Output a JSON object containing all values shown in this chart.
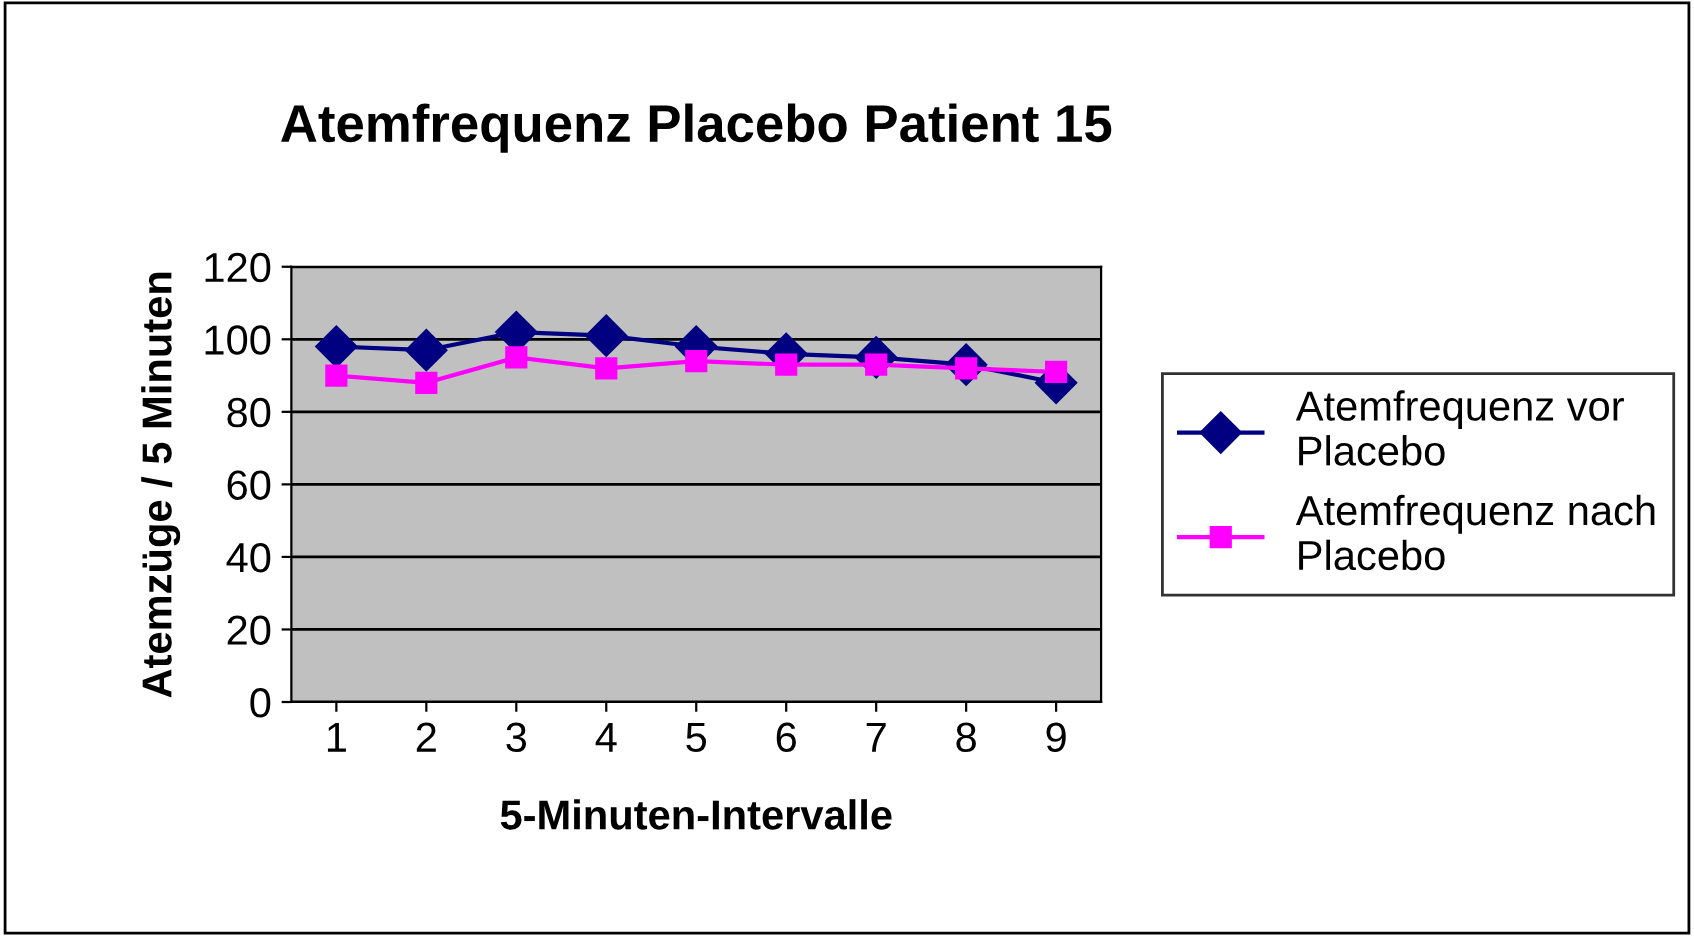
{
  "chart_data": {
    "type": "line",
    "title": "Atemfrequenz Placebo Patient 15",
    "xlabel": "5-Minuten-Intervalle",
    "ylabel": "Atemzüge / 5 Minuten",
    "categories": [
      "1",
      "2",
      "3",
      "4",
      "5",
      "6",
      "7",
      "8",
      "9"
    ],
    "series": [
      {
        "name": "Atemfrequenz vor Placebo",
        "color": "#000080",
        "marker": "diamond",
        "values": [
          98,
          97,
          102,
          101,
          98,
          96,
          95,
          93,
          88
        ]
      },
      {
        "name": "Atemfrequenz nach Placebo",
        "color": "#ff00ff",
        "marker": "square",
        "values": [
          90,
          88,
          95,
          92,
          94,
          93,
          93,
          92,
          91
        ]
      }
    ],
    "ylim": [
      0,
      120
    ],
    "yticks": [
      0,
      20,
      40,
      60,
      80,
      100,
      120
    ],
    "grid": "y",
    "legend": "right"
  }
}
